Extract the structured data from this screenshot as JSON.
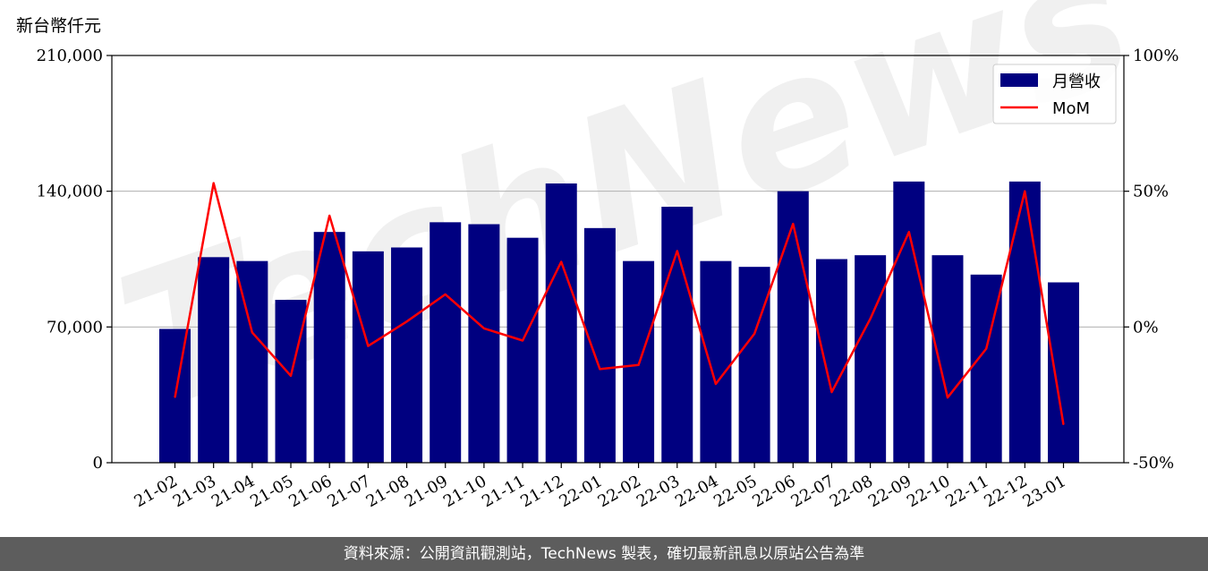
{
  "chart_data": {
    "type": "bar",
    "ylabel": "新台幣仟元",
    "categories": [
      "21-02",
      "21-03",
      "21-04",
      "21-05",
      "21-06",
      "21-07",
      "21-08",
      "21-09",
      "21-10",
      "21-11",
      "21-12",
      "22-01",
      "22-02",
      "22-03",
      "22-04",
      "22-05",
      "22-06",
      "22-07",
      "22-08",
      "22-09",
      "22-10",
      "22-11",
      "22-12",
      "23-01"
    ],
    "series": [
      {
        "name": "月營收",
        "type": "bar",
        "axis": "left",
        "color": "#000080",
        "values": [
          69000,
          106000,
          104000,
          84000,
          119000,
          109000,
          111000,
          124000,
          123000,
          116000,
          144000,
          121000,
          104000,
          132000,
          104000,
          101000,
          140000,
          105000,
          107000,
          145000,
          107000,
          97000,
          145000,
          93000
        ]
      },
      {
        "name": "MoM",
        "type": "line",
        "axis": "right",
        "color": "#ff0000",
        "values": [
          -26,
          53,
          -2,
          -18,
          41,
          -7,
          2,
          12,
          -0.5,
          -5,
          24,
          -15.5,
          -14,
          28,
          -21,
          -2.5,
          38,
          -24,
          3,
          35,
          -26,
          -8,
          50,
          -36
        ]
      }
    ],
    "ylim": [
      0,
      210000
    ],
    "yticks": [
      "0",
      "70,000",
      "140,000",
      "210,000"
    ],
    "y2lim": [
      -50,
      100
    ],
    "y2ticks": [
      "-50%",
      "0%",
      "50%",
      "100%"
    ],
    "grid": "horizontal",
    "legend_position": "top-right"
  },
  "watermark": {
    "text": "TechNews"
  },
  "footer": {
    "text": "資料來源：公開資訊觀測站，TechNews 製表，確切最新訊息以原站公告為準"
  }
}
